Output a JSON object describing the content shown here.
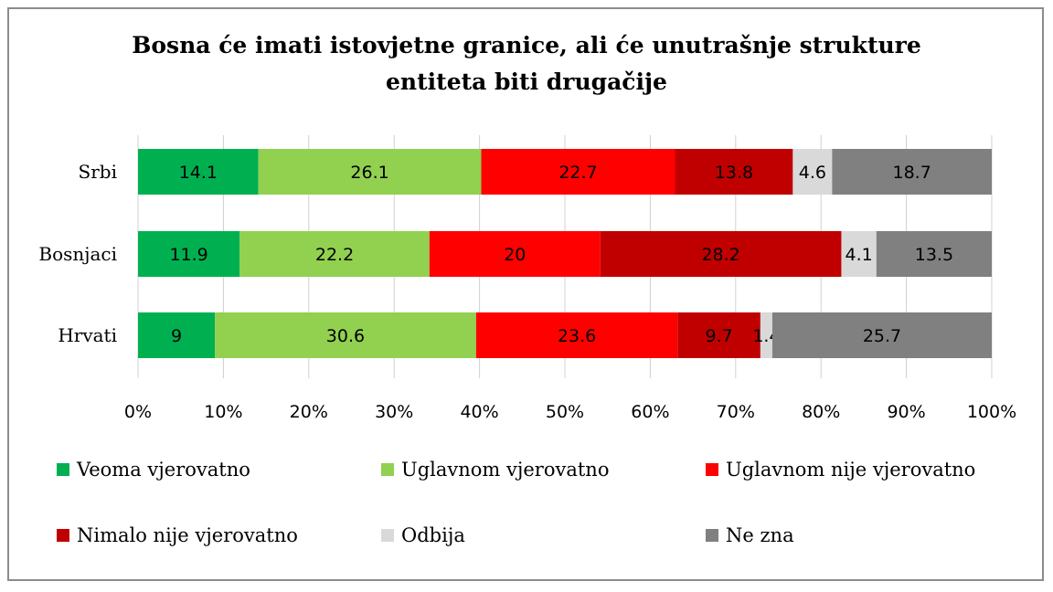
{
  "chart_data": {
    "type": "bar",
    "orientation": "horizontal",
    "stacked": true,
    "normalized": true,
    "title_lines": [
      "Bosna će imati istovjetne granice, ali će unutrašnje strukture",
      "entiteta biti drugačije"
    ],
    "categories": [
      "Srbi",
      "Bosnjaci",
      "Hrvati"
    ],
    "xlim": [
      0,
      100
    ],
    "xticks": [
      "0%",
      "10%",
      "20%",
      "30%",
      "40%",
      "50%",
      "60%",
      "70%",
      "80%",
      "90%",
      "100%"
    ],
    "legend_position": "bottom",
    "series": [
      {
        "name": "Veoma vjerovatno",
        "color": "#00b050",
        "values": [
          14.1,
          11.9,
          9
        ]
      },
      {
        "name": "Uglavnom vjerovatno",
        "color": "#92d050",
        "values": [
          26.1,
          22.2,
          30.6
        ]
      },
      {
        "name": "Uglavnom nije vjerovatno",
        "color": "#ff0000",
        "values": [
          22.7,
          20,
          23.6
        ]
      },
      {
        "name": "Nimalo nije vjerovatno",
        "color": "#c00000",
        "values": [
          13.8,
          28.2,
          9.7
        ]
      },
      {
        "name": "Odbija",
        "color": "#d9d9d9",
        "values": [
          4.6,
          4.1,
          1.4
        ]
      },
      {
        "name": "Ne zna",
        "color": "#808080",
        "values": [
          18.7,
          13.5,
          25.7
        ]
      }
    ]
  }
}
